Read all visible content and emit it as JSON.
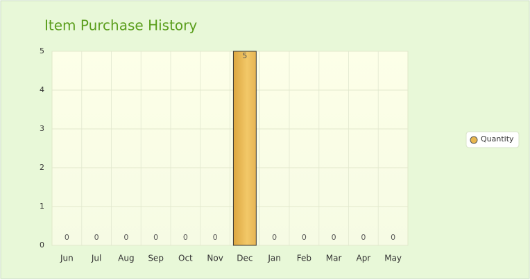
{
  "chart_data": {
    "type": "bar",
    "title": "Item Purchase History",
    "categories": [
      "Jun",
      "Jul",
      "Aug",
      "Sep",
      "Oct",
      "Nov",
      "Dec",
      "Jan",
      "Feb",
      "Mar",
      "Apr",
      "May"
    ],
    "series": [
      {
        "name": "Quantity",
        "color": "#e8b64e",
        "values": [
          0,
          0,
          0,
          0,
          0,
          0,
          5,
          0,
          0,
          0,
          0,
          0
        ]
      }
    ],
    "ylim": [
      0,
      5
    ],
    "yticks": [
      0,
      1,
      2,
      3,
      4,
      5
    ],
    "grid": true,
    "legend": "right"
  }
}
